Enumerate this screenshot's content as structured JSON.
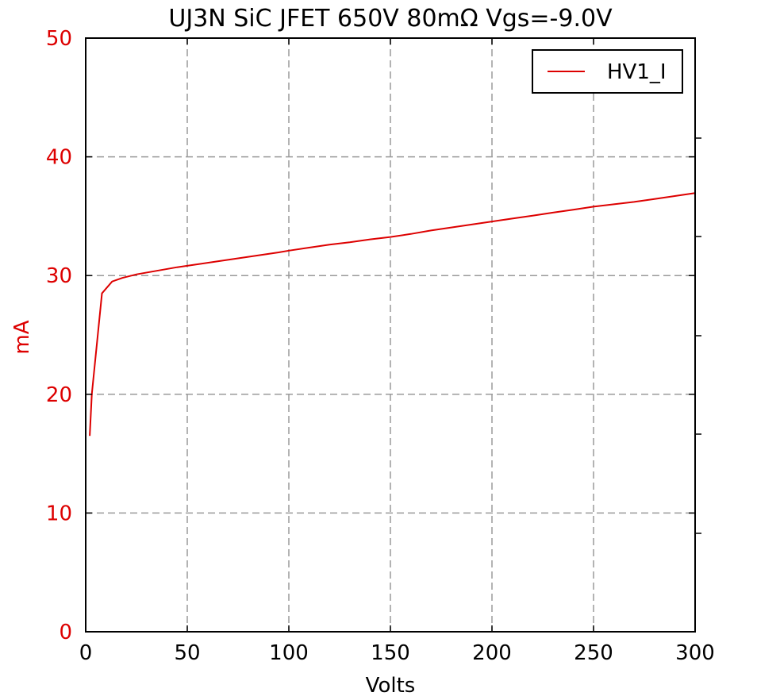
{
  "chart_data": {
    "type": "line",
    "title": "UJ3N SiC JFET 650V 80mΩ Vgs=-9.0V",
    "xlabel": "Volts",
    "ylabel": "mA",
    "xlim": [
      0,
      300
    ],
    "ylim": [
      0,
      50
    ],
    "x_ticks": [
      "0",
      "50",
      "100",
      "150",
      "200",
      "250",
      "300"
    ],
    "y_ticks": [
      "0",
      "10",
      "20",
      "30",
      "40",
      "50"
    ],
    "grid": true,
    "legend": "top-right",
    "ylabel_color": "#dd0000",
    "series": [
      {
        "name": "HV1_I",
        "color": "#dd0000",
        "x": [
          2,
          3,
          8,
          13,
          18,
          25,
          35,
          45,
          55,
          65,
          75,
          85,
          95,
          100,
          110,
          120,
          130,
          140,
          150,
          160,
          170,
          180,
          190,
          200,
          210,
          220,
          230,
          240,
          250,
          260,
          270,
          280,
          290,
          300
        ],
        "y": [
          16.5,
          20,
          28.5,
          29.5,
          29.8,
          30.1,
          30.4,
          30.7,
          30.95,
          31.2,
          31.45,
          31.7,
          31.95,
          32.1,
          32.35,
          32.6,
          32.8,
          33.05,
          33.25,
          33.5,
          33.8,
          34.05,
          34.3,
          34.55,
          34.8,
          35.05,
          35.3,
          35.55,
          35.8,
          36.0,
          36.2,
          36.45,
          36.7,
          36.95
        ]
      }
    ]
  }
}
